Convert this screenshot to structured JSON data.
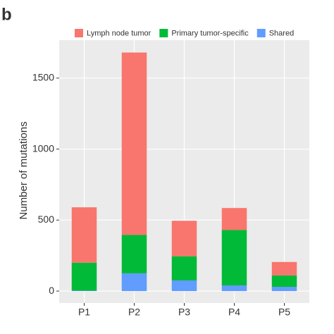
{
  "chart_data": {
    "type": "stacked-bar",
    "panel_label": "b",
    "y_label": "Number of mutations",
    "categories": [
      "P1",
      "P2",
      "P3",
      "P4",
      "P5"
    ],
    "series": [
      {
        "name": "Lymph node tumor",
        "color": "#F8766D",
        "values": [
          390,
          1285,
          250,
          155,
          95
        ]
      },
      {
        "name": "Primary tumor-specific",
        "color": "#00BA38",
        "values": [
          197,
          270,
          170,
          390,
          80
        ]
      },
      {
        "name": "Shared",
        "color": "#619CFF",
        "values": [
          3,
          125,
          75,
          40,
          30
        ]
      }
    ],
    "ylim": [
      -84,
      1767
    ],
    "yticks": [
      0,
      500,
      1000,
      1500
    ],
    "grid": true
  }
}
